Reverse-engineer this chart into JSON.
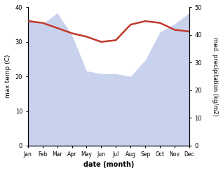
{
  "months": [
    "Jan",
    "Feb",
    "Mar",
    "Apr",
    "May",
    "Jun",
    "Jul",
    "Aug",
    "Sep",
    "Oct",
    "Nov",
    "Dec"
  ],
  "x": [
    0,
    1,
    2,
    3,
    4,
    5,
    6,
    7,
    8,
    9,
    10,
    11
  ],
  "temp": [
    36.0,
    35.5,
    34.0,
    32.5,
    31.5,
    30.0,
    30.5,
    35.0,
    36.0,
    35.5,
    33.5,
    33.0
  ],
  "precip": [
    46,
    44,
    48,
    40,
    27,
    26,
    26,
    25,
    31,
    41,
    44,
    48
  ],
  "temp_color": "#c0392b",
  "precip_fill_color": "#b8c4e8",
  "precip_fill_alpha": 0.75,
  "ylabel_left": "max temp (C)",
  "ylabel_right": "med. precipitation (kg/m2)",
  "xlabel": "date (month)",
  "ylim_left": [
    0,
    40
  ],
  "ylim_right": [
    0,
    50
  ],
  "yticks_left": [
    0,
    10,
    20,
    30,
    40
  ],
  "yticks_right": [
    0,
    10,
    20,
    30,
    40,
    50
  ],
  "figsize": [
    3.18,
    2.47
  ],
  "dpi": 100,
  "bg_color": "#ffffff"
}
